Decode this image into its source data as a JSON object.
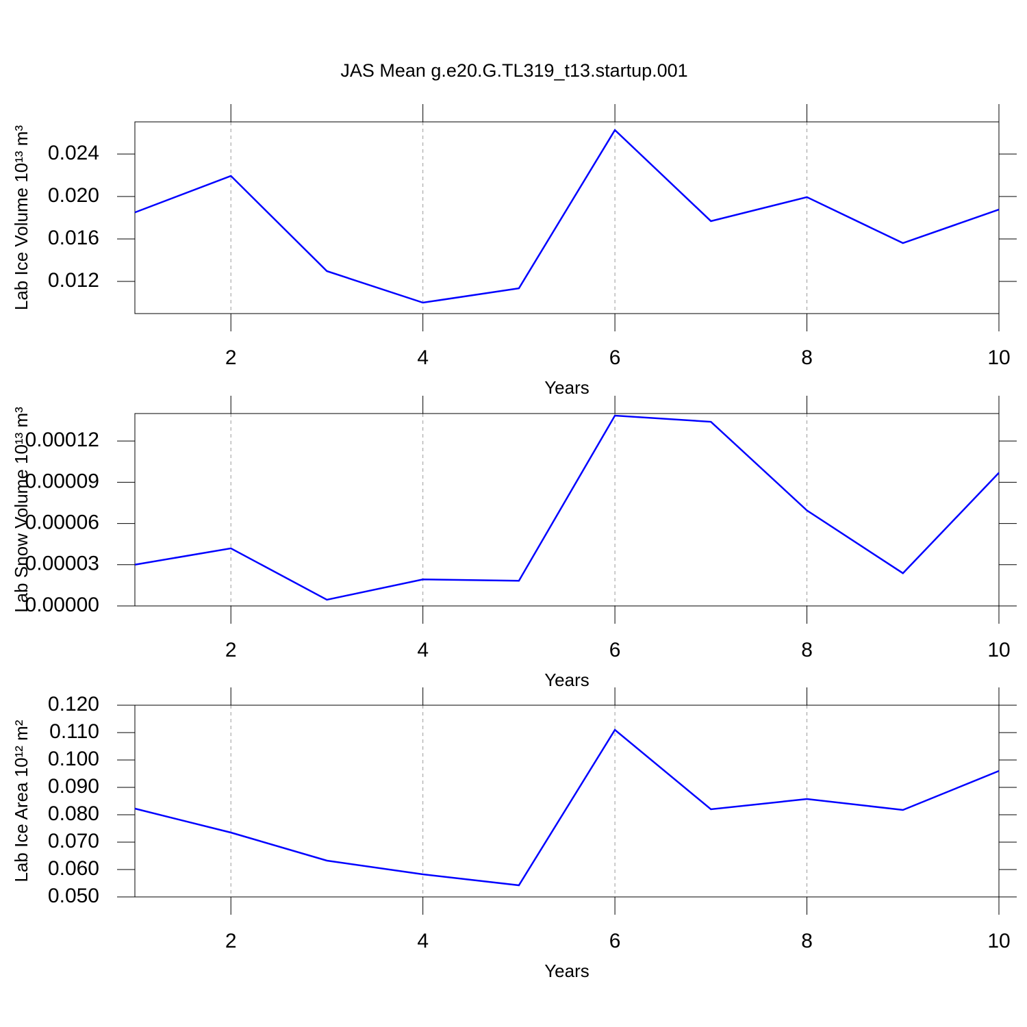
{
  "title": "JAS Mean g.e20.G.TL319_t13.startup.001",
  "chart_data": [
    {
      "type": "line",
      "ylabel": "Lab Ice Volume 10¹³ m³",
      "xlabel": "Years",
      "x": [
        1,
        2,
        3,
        4,
        5,
        6,
        7,
        8,
        9,
        10
      ],
      "series": [
        {
          "color": "#0000ff",
          "values": [
            0.0185,
            0.02194,
            0.01297,
            0.01,
            0.01135,
            0.02626,
            0.01768,
            0.01994,
            0.01561,
            0.01877
          ]
        }
      ],
      "xlim": [
        1,
        10
      ],
      "xticks": [
        2,
        4,
        6,
        8,
        10
      ],
      "ylim": [
        0.00897,
        0.02703
      ],
      "yticks": [
        0.012,
        0.016,
        {
          "value": 0.02,
          "label": "0.020"
        },
        0.024
      ],
      "grid": true
    },
    {
      "type": "line",
      "ylabel": "Lab Snow Volume 10¹³ m³",
      "xlabel": "Years",
      "x": [
        1,
        2,
        3,
        4,
        5,
        6,
        7,
        8,
        9,
        10
      ],
      "series": [
        {
          "color": "#0000ff",
          "values": [
            3e-05,
            4.19e-05,
            4.5e-06,
            1.93e-05,
            1.83e-05,
            0.0001385,
            0.000134,
            6.95e-05,
            2.38e-05,
            9.69e-05
          ]
        }
      ],
      "xlim": [
        1,
        10
      ],
      "xticks": [
        2,
        4,
        6,
        8,
        10
      ],
      "ylim": [
        0,
        0.00014
      ],
      "yticks": [
        {
          "value": 0,
          "label": "0.00000"
        },
        {
          "value": 3e-05,
          "label": "0.00003"
        },
        {
          "value": 6e-05,
          "label": "0.00006"
        },
        {
          "value": 9e-05,
          "label": "0.00009"
        },
        {
          "value": 0.00012,
          "label": "0.00012"
        }
      ],
      "grid": true
    },
    {
      "type": "line",
      "ylabel": "Lab Ice Area 10¹² m²",
      "xlabel": "Years",
      "x": [
        1,
        2,
        3,
        4,
        5,
        6,
        7,
        8,
        9,
        10
      ],
      "series": [
        {
          "color": "#0000ff",
          "values": [
            0.08225,
            0.0735,
            0.06325,
            0.05825,
            0.05425,
            0.111,
            0.082,
            0.08575,
            0.08175,
            0.096
          ]
        }
      ],
      "xlim": [
        1,
        10
      ],
      "xticks": [
        2,
        4,
        6,
        8,
        10
      ],
      "ylim": [
        0.05,
        0.12
      ],
      "yticks": [
        {
          "value": 0.05,
          "label": "0.050"
        },
        {
          "value": 0.06,
          "label": "0.060"
        },
        {
          "value": 0.07,
          "label": "0.070"
        },
        {
          "value": 0.08,
          "label": "0.080"
        },
        {
          "value": 0.09,
          "label": "0.090"
        },
        {
          "value": 0.1,
          "label": "0.100"
        },
        {
          "value": 0.11,
          "label": "0.110"
        },
        {
          "value": 0.12,
          "label": "0.120"
        }
      ],
      "grid": true
    }
  ]
}
